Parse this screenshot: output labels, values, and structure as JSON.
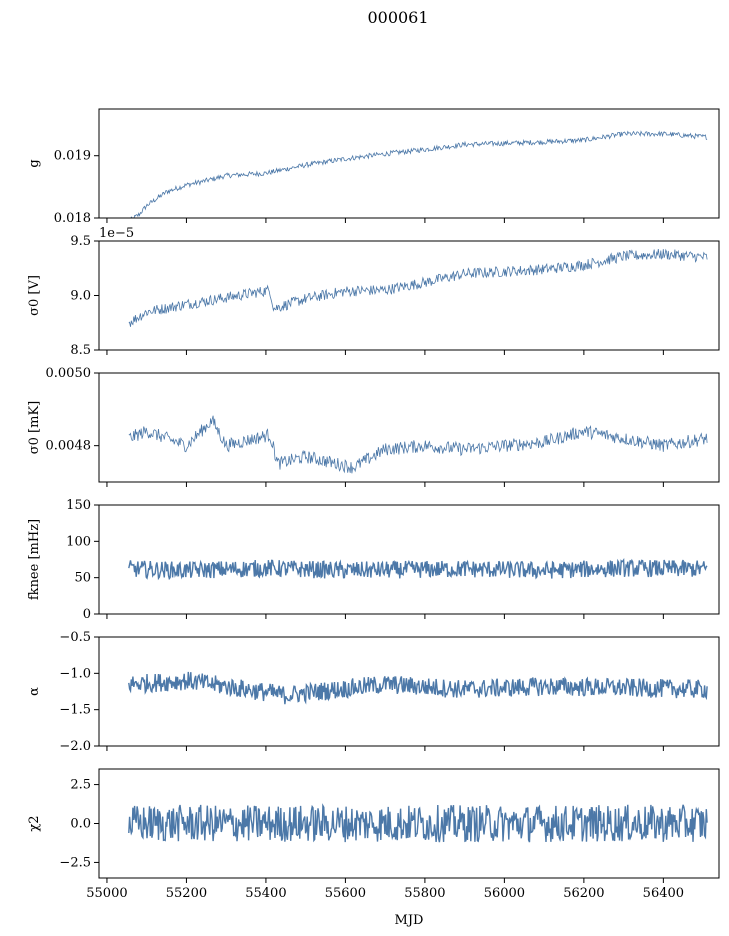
{
  "title": "000061",
  "x_axis_label": "MJD",
  "series_color": "#4c78a8",
  "chart_data": [
    {
      "type": "line",
      "ylabel": "g",
      "ylim": [
        0.018,
        0.01975
      ],
      "yticks": [
        0.018,
        0.019
      ],
      "ytick_labels": [
        "0.018",
        "0.019"
      ],
      "offset_text": "",
      "xlim": [
        54980,
        56540
      ],
      "noise": 4e-05,
      "x": [
        55055,
        55080,
        55100,
        55150,
        55200,
        55250,
        55300,
        55400,
        55500,
        55600,
        55700,
        55800,
        55900,
        56000,
        56100,
        56200,
        56300,
        56400,
        56510
      ],
      "y": [
        0.01795,
        0.01805,
        0.0182,
        0.01842,
        0.01853,
        0.0186,
        0.01868,
        0.01872,
        0.01885,
        0.01895,
        0.01903,
        0.0191,
        0.01918,
        0.0192,
        0.01922,
        0.01925,
        0.01935,
        0.01935,
        0.0193
      ]
    },
    {
      "type": "line",
      "ylabel": "σ0 [V]",
      "ylim": [
        8.5,
        9.5
      ],
      "yticks": [
        8.5,
        9.0,
        9.5
      ],
      "ytick_labels": [
        "8.5",
        "9.0",
        "9.5"
      ],
      "offset_text": "1e−5",
      "xlim": [
        54980,
        56540
      ],
      "noise": 0.05,
      "x": [
        55055,
        55100,
        55200,
        55300,
        55410,
        55420,
        55500,
        55600,
        55700,
        55800,
        55900,
        56000,
        56100,
        56200,
        56300,
        56400,
        56510
      ],
      "y": [
        8.75,
        8.85,
        8.92,
        8.98,
        9.05,
        8.88,
        8.97,
        9.04,
        9.05,
        9.12,
        9.2,
        9.22,
        9.24,
        9.28,
        9.36,
        9.38,
        9.35
      ]
    },
    {
      "type": "line",
      "ylabel": "σ0 [mK]",
      "ylim": [
        0.0047,
        0.005
      ],
      "yticks": [
        0.0048,
        0.005
      ],
      "ytick_labels": [
        "0.0048",
        "0.0050"
      ],
      "offset_text": "",
      "xlim": [
        54980,
        56540
      ],
      "noise": 1.8e-05,
      "x": [
        55055,
        55100,
        55200,
        55265,
        55300,
        55410,
        55430,
        55500,
        55620,
        55700,
        55800,
        55900,
        56000,
        56100,
        56200,
        56300,
        56400,
        56510
      ],
      "y": [
        0.00482,
        0.00484,
        0.0048,
        0.00487,
        0.0048,
        0.00483,
        0.00475,
        0.00477,
        0.00474,
        0.00479,
        0.0048,
        0.00479,
        0.0048,
        0.00481,
        0.00484,
        0.00482,
        0.0048,
        0.00482
      ]
    },
    {
      "type": "line",
      "ylabel": "fknee [mHz]",
      "ylim": [
        0,
        150
      ],
      "yticks": [
        0,
        50,
        100,
        150
      ],
      "ytick_labels": [
        "0",
        "50",
        "100",
        "150"
      ],
      "offset_text": "",
      "xlim": [
        54980,
        56540
      ],
      "noise": 12,
      "x": [
        55055,
        55200,
        55400,
        55600,
        55900,
        56100,
        56300,
        56510
      ],
      "y": [
        62,
        60,
        63,
        60,
        62,
        60,
        63,
        62
      ]
    },
    {
      "type": "line",
      "ylabel": "α",
      "ylim": [
        -2.0,
        -0.5
      ],
      "yticks": [
        -2.0,
        -1.5,
        -1.0,
        -0.5
      ],
      "ytick_labels": [
        "−2.0",
        "−1.5",
        "−1.0",
        "−0.5"
      ],
      "offset_text": "",
      "xlim": [
        54980,
        56540
      ],
      "noise": 0.13,
      "x": [
        55055,
        55200,
        55450,
        55700,
        55900,
        56100,
        56300,
        56510
      ],
      "y": [
        -1.15,
        -1.1,
        -1.3,
        -1.15,
        -1.22,
        -1.18,
        -1.2,
        -1.22
      ]
    },
    {
      "type": "line",
      "ylabel": "χ2",
      "ylim": [
        -3.5,
        3.5
      ],
      "yticks": [
        -2.5,
        0.0,
        2.5
      ],
      "ytick_labels": [
        "−2.5",
        "0.0",
        "2.5"
      ],
      "offset_text": "",
      "xlim": [
        54980,
        56540
      ],
      "noise": 1.2,
      "x": [
        55055,
        56510
      ],
      "y": [
        0.0,
        0.0
      ]
    }
  ],
  "x_ticks": [
    55000,
    55200,
    55400,
    55600,
    55800,
    56000,
    56200,
    56400
  ],
  "x_tick_labels": [
    "55000",
    "55200",
    "55400",
    "55600",
    "55800",
    "56000",
    "56200",
    "56400"
  ]
}
